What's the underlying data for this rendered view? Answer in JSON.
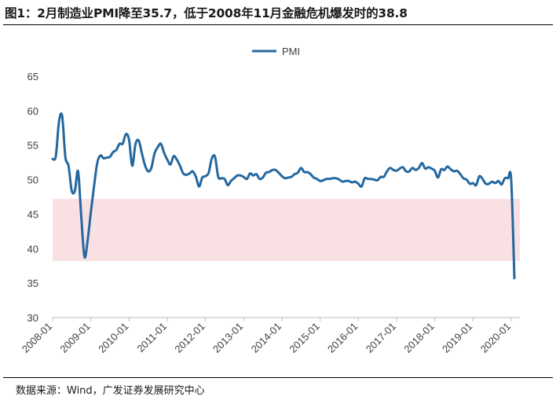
{
  "figure": {
    "title": "图1：2月制造业PMI降至35.7，低于2008年11月金融危机爆发时的38.8",
    "source": "数据来源：Wind，广发证券发展研究中心"
  },
  "chart_data": {
    "type": "line",
    "title": "",
    "xlabel": "",
    "ylabel": "",
    "legend": {
      "position": "top-center",
      "entries": [
        "PMI"
      ]
    },
    "grid": false,
    "ylim": [
      30,
      65
    ],
    "yticks": [
      "30",
      "35",
      "40",
      "45",
      "50",
      "55",
      "60",
      "65"
    ],
    "xticks": [
      "2008-01",
      "2009-01",
      "2010-01",
      "2011-01",
      "2012-01",
      "2013-01",
      "2014-01",
      "2015-01",
      "2016-01",
      "2017-01",
      "2018-01",
      "2019-01",
      "2020-01"
    ],
    "shaded_band": {
      "y_low": 38.2,
      "y_high": 47.2,
      "color": "#f9e0e3"
    },
    "series": [
      {
        "name": "PMI",
        "color": "#2468a0",
        "x": [
          "2008-01",
          "2008-02",
          "2008-03",
          "2008-04",
          "2008-05",
          "2008-06",
          "2008-07",
          "2008-08",
          "2008-09",
          "2008-10",
          "2008-11",
          "2008-12",
          "2009-01",
          "2009-02",
          "2009-03",
          "2009-04",
          "2009-05",
          "2009-06",
          "2009-07",
          "2009-08",
          "2009-09",
          "2009-10",
          "2009-11",
          "2009-12",
          "2010-01",
          "2010-02",
          "2010-03",
          "2010-04",
          "2010-05",
          "2010-06",
          "2010-07",
          "2010-08",
          "2010-09",
          "2010-10",
          "2010-11",
          "2010-12",
          "2011-01",
          "2011-02",
          "2011-03",
          "2011-04",
          "2011-05",
          "2011-06",
          "2011-07",
          "2011-08",
          "2011-09",
          "2011-10",
          "2011-11",
          "2011-12",
          "2012-01",
          "2012-02",
          "2012-03",
          "2012-04",
          "2012-05",
          "2012-06",
          "2012-07",
          "2012-08",
          "2012-09",
          "2012-10",
          "2012-11",
          "2012-12",
          "2013-01",
          "2013-02",
          "2013-03",
          "2013-04",
          "2013-05",
          "2013-06",
          "2013-07",
          "2013-08",
          "2013-09",
          "2013-10",
          "2013-11",
          "2013-12",
          "2014-01",
          "2014-02",
          "2014-03",
          "2014-04",
          "2014-05",
          "2014-06",
          "2014-07",
          "2014-08",
          "2014-09",
          "2014-10",
          "2014-11",
          "2014-12",
          "2015-01",
          "2015-02",
          "2015-03",
          "2015-04",
          "2015-05",
          "2015-06",
          "2015-07",
          "2015-08",
          "2015-09",
          "2015-10",
          "2015-11",
          "2015-12",
          "2016-01",
          "2016-02",
          "2016-03",
          "2016-04",
          "2016-05",
          "2016-06",
          "2016-07",
          "2016-08",
          "2016-09",
          "2016-10",
          "2016-11",
          "2016-12",
          "2017-01",
          "2017-02",
          "2017-03",
          "2017-04",
          "2017-05",
          "2017-06",
          "2017-07",
          "2017-08",
          "2017-09",
          "2017-10",
          "2017-11",
          "2017-12",
          "2018-01",
          "2018-02",
          "2018-03",
          "2018-04",
          "2018-05",
          "2018-06",
          "2018-07",
          "2018-08",
          "2018-09",
          "2018-10",
          "2018-11",
          "2018-12",
          "2019-01",
          "2019-02",
          "2019-03",
          "2019-04",
          "2019-05",
          "2019-06",
          "2019-07",
          "2019-08",
          "2019-09",
          "2019-10",
          "2019-11",
          "2019-12",
          "2020-01",
          "2020-02"
        ],
        "values": [
          53.0,
          53.4,
          58.4,
          59.2,
          53.3,
          52.0,
          48.4,
          48.4,
          51.2,
          44.6,
          38.8,
          41.2,
          45.3,
          49.0,
          52.4,
          53.5,
          53.1,
          53.2,
          53.3,
          54.0,
          54.3,
          55.2,
          55.2,
          56.6,
          55.8,
          52.0,
          55.1,
          55.7,
          53.9,
          52.1,
          51.2,
          51.7,
          53.8,
          54.7,
          55.2,
          53.9,
          52.9,
          52.2,
          53.4,
          52.9,
          52.0,
          50.9,
          50.7,
          50.9,
          51.2,
          50.4,
          49.0,
          50.3,
          50.5,
          51.0,
          53.1,
          53.3,
          50.4,
          50.2,
          50.1,
          49.2,
          49.8,
          50.2,
          50.6,
          50.6,
          50.4,
          50.1,
          50.9,
          50.6,
          50.8,
          50.1,
          50.3,
          51.0,
          51.1,
          51.4,
          51.4,
          51.0,
          50.5,
          50.2,
          50.3,
          50.4,
          50.8,
          51.0,
          51.7,
          51.1,
          51.1,
          50.8,
          50.3,
          50.1,
          49.8,
          49.9,
          50.1,
          50.1,
          50.2,
          50.2,
          50.0,
          49.7,
          49.8,
          49.8,
          49.6,
          49.7,
          49.4,
          49.0,
          50.2,
          50.1,
          50.1,
          50.0,
          49.9,
          50.4,
          50.4,
          51.2,
          51.7,
          51.4,
          51.3,
          51.6,
          51.8,
          51.2,
          51.2,
          51.7,
          51.4,
          51.7,
          52.4,
          51.6,
          51.8,
          51.6,
          51.3,
          50.3,
          51.5,
          51.4,
          51.9,
          51.5,
          51.2,
          51.3,
          50.8,
          50.2,
          50.0,
          49.4,
          49.5,
          49.2,
          50.5,
          50.1,
          49.4,
          49.4,
          49.7,
          49.5,
          49.8,
          49.3,
          50.2,
          50.2,
          50.0,
          35.7
        ]
      }
    ]
  }
}
